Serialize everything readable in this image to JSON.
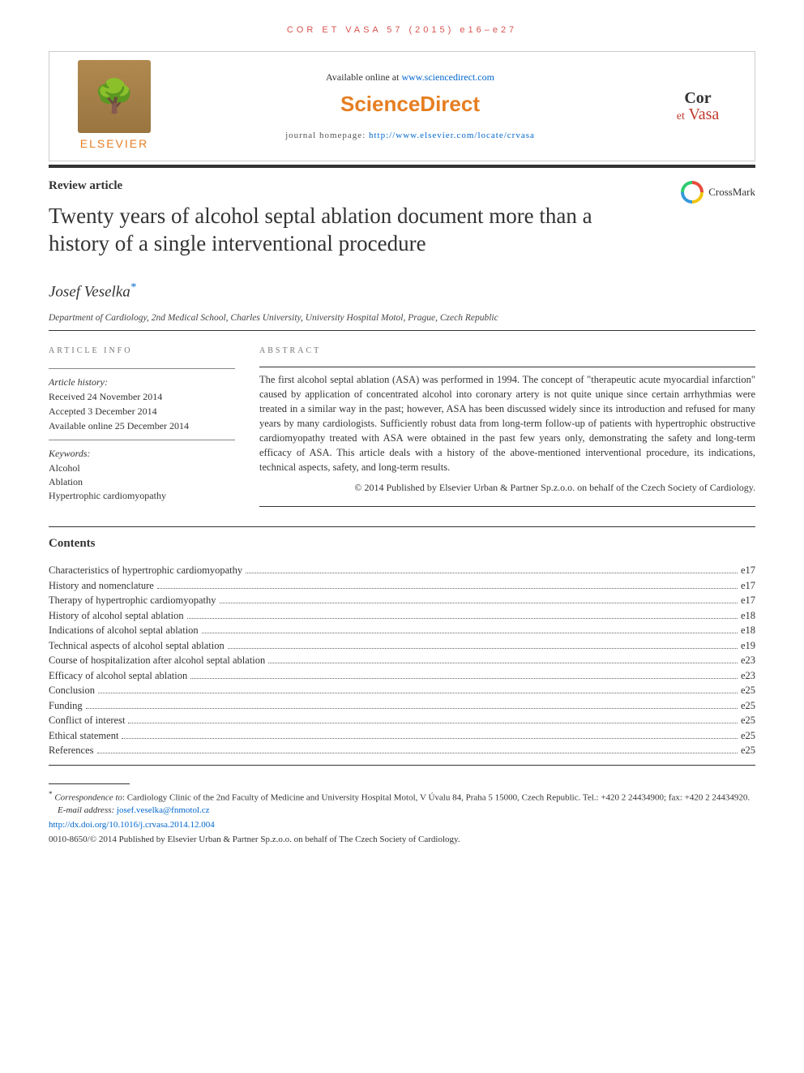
{
  "header": {
    "citation": "COR ET VASA 57 (2015) e16–e27",
    "available_prefix": "Available online at ",
    "available_link": "www.sciencedirect.com",
    "sciencedirect_logo": "ScienceDirect",
    "homepage_prefix": "journal homepage: ",
    "homepage_link": "http://www.elsevier.com/locate/crvasa",
    "elsevier": "ELSEVIER",
    "journal_name_cor": "Cor",
    "journal_name_et": "et",
    "journal_name_vasa": "Vasa"
  },
  "article": {
    "type": "Review article",
    "title": "Twenty years of alcohol septal ablation document more than a history of a single interventional procedure",
    "crossmark": "CrossMark",
    "author": "Josef Veselka",
    "author_marker": "*",
    "affiliation": "Department of Cardiology, 2nd Medical School, Charles University, University Hospital Motol, Prague, Czech Republic"
  },
  "info": {
    "section_label": "ARTICLE INFO",
    "history_label": "Article history:",
    "received": "Received 24 November 2014",
    "accepted": "Accepted 3 December 2014",
    "online": "Available online 25 December 2014",
    "keywords_label": "Keywords:",
    "keywords": [
      "Alcohol",
      "Ablation",
      "Hypertrophic cardiomyopathy"
    ]
  },
  "abstract": {
    "section_label": "ABSTRACT",
    "text": "The first alcohol septal ablation (ASA) was performed in 1994. The concept of \"therapeutic acute myocardial infarction\" caused by application of concentrated alcohol into coronary artery is not quite unique since certain arrhythmias were treated in a similar way in the past; however, ASA has been discussed widely since its introduction and refused for many years by many cardiologists. Sufficiently robust data from long-term follow-up of patients with hypertrophic obstructive cardiomyopathy treated with ASA were obtained in the past few years only, demonstrating the safety and long-term efficacy of ASA. This article deals with a history of the above-mentioned interventional procedure, its indications, technical aspects, safety, and long-term results.",
    "copyright": "© 2014 Published by Elsevier Urban & Partner Sp.z.o.o. on behalf of the Czech Society of Cardiology."
  },
  "contents": {
    "heading": "Contents",
    "items": [
      {
        "title": "Characteristics of hypertrophic cardiomyopathy",
        "page": "e17"
      },
      {
        "title": "History and nomenclature",
        "page": "e17"
      },
      {
        "title": "Therapy of hypertrophic cardiomyopathy",
        "page": "e17"
      },
      {
        "title": "History of alcohol septal ablation",
        "page": "e18"
      },
      {
        "title": "Indications of alcohol septal ablation",
        "page": "e18"
      },
      {
        "title": "Technical aspects of alcohol septal ablation",
        "page": "e19"
      },
      {
        "title": "Course of hospitalization after alcohol septal ablation",
        "page": "e23"
      },
      {
        "title": "Efficacy of alcohol septal ablation",
        "page": "e23"
      },
      {
        "title": "Conclusion",
        "page": "e25"
      },
      {
        "title": "Funding",
        "page": "e25"
      },
      {
        "title": "Conflict of interest",
        "page": "e25"
      },
      {
        "title": "Ethical statement",
        "page": "e25"
      },
      {
        "title": "References",
        "page": "e25"
      }
    ]
  },
  "footer": {
    "corr_marker": "*",
    "corr_label": "Correspondence to",
    "corr_text": ": Cardiology Clinic of the 2nd Faculty of Medicine and University Hospital Motol, V Úvalu 84, Praha 5 15000, Czech Republic. Tel.: +420 2 24434900; fax: +420 2 24434920.",
    "email_label": "E-mail address:",
    "email": "josef.veselka@fnmotol.cz",
    "doi": "http://dx.doi.org/10.1016/j.crvasa.2014.12.004",
    "issn": "0010-8650/© 2014 Published by Elsevier Urban & Partner Sp.z.o.o. on behalf of The Czech Society of Cardiology."
  },
  "colors": {
    "link": "#0066cc",
    "orange": "#e67e22",
    "red": "#c0392b",
    "rule": "#333333"
  }
}
